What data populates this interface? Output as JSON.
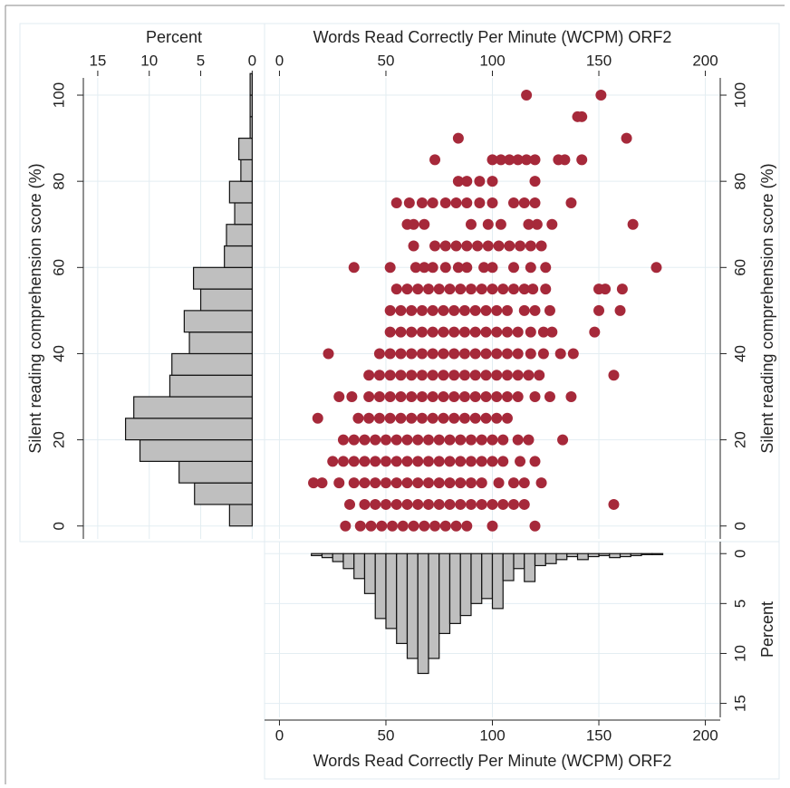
{
  "chart_data": [
    {
      "type": "histogram",
      "orientation": "horizontal",
      "xlabel": "Percent",
      "ylabel": "Silent reading comprehension score (%)",
      "bins": [
        0,
        5,
        10,
        15,
        20,
        25,
        30,
        35,
        40,
        45,
        50,
        55,
        60,
        65,
        70,
        75,
        80,
        85,
        90,
        95,
        100,
        105
      ],
      "values": [
        2.2,
        5.6,
        7.1,
        10.9,
        12.3,
        11.5,
        8.0,
        7.8,
        6.1,
        6.6,
        5.0,
        5.7,
        2.7,
        2.5,
        1.7,
        2.2,
        1.1,
        1.3,
        0.2,
        0.2,
        0.2
      ],
      "color": "#bfbfbf",
      "xlim": [
        16.4,
        -1.2
      ],
      "xticks": [
        15,
        10,
        5,
        0
      ],
      "ylim": [
        -3,
        104
      ],
      "yticks": [
        0,
        20,
        40,
        60,
        80,
        100
      ],
      "grid": true
    },
    {
      "type": "scatter",
      "xlabel": "Words Read Correctly Per Minute (WCPM) ORF2",
      "ylabel": "Silent reading comprehension score (%)",
      "x": [
        116,
        151,
        140,
        142,
        84,
        163,
        73,
        100,
        104,
        108,
        112,
        116,
        120,
        131,
        134,
        142,
        84,
        88,
        94,
        100,
        120,
        55,
        61,
        67,
        72,
        78,
        83,
        88,
        94,
        100,
        110,
        115,
        120,
        137,
        60,
        63,
        68,
        90,
        98,
        104,
        117,
        121,
        128,
        166,
        63,
        73,
        78,
        83,
        88,
        93,
        98,
        103,
        108,
        113,
        118,
        123,
        35,
        52,
        64,
        68,
        72,
        78,
        84,
        88,
        96,
        100,
        110,
        118,
        125,
        177,
        55,
        60,
        65,
        70,
        75,
        80,
        85,
        90,
        95,
        100,
        105,
        110,
        115,
        119,
        125,
        150,
        153,
        161,
        52,
        57,
        62,
        67,
        72,
        77,
        82,
        87,
        92,
        97,
        102,
        107,
        115,
        120,
        127,
        150,
        160,
        52,
        57,
        62,
        67,
        72,
        77,
        82,
        87,
        92,
        97,
        102,
        107,
        112,
        118,
        124,
        128,
        148,
        23,
        47,
        52,
        57,
        62,
        67,
        72,
        77,
        82,
        87,
        92,
        97,
        102,
        107,
        112,
        118,
        124,
        132,
        138,
        42,
        47,
        52,
        57,
        62,
        67,
        72,
        77,
        82,
        87,
        92,
        97,
        102,
        107,
        112,
        117,
        122,
        157,
        28,
        34,
        42,
        47,
        52,
        57,
        62,
        67,
        72,
        77,
        82,
        87,
        92,
        97,
        102,
        107,
        112,
        120,
        127,
        137,
        18,
        37,
        42,
        47,
        52,
        57,
        62,
        67,
        72,
        77,
        82,
        87,
        92,
        97,
        102,
        107,
        30,
        35,
        40,
        45,
        50,
        55,
        60,
        65,
        70,
        75,
        80,
        85,
        90,
        95,
        100,
        105,
        112,
        117,
        133,
        25,
        30,
        35,
        40,
        45,
        50,
        55,
        60,
        65,
        70,
        75,
        80,
        85,
        90,
        95,
        100,
        105,
        113,
        120,
        16,
        20,
        28,
        35,
        40,
        45,
        50,
        55,
        60,
        65,
        70,
        75,
        80,
        85,
        90,
        95,
        103,
        110,
        115,
        123,
        33,
        40,
        45,
        50,
        55,
        60,
        65,
        70,
        75,
        80,
        85,
        90,
        95,
        100,
        105,
        110,
        115,
        157,
        31,
        38,
        43,
        48,
        53,
        58,
        63,
        68,
        73,
        78,
        83,
        88,
        100,
        120
      ],
      "values": [
        100,
        100,
        95,
        95,
        90,
        90,
        85,
        85,
        85,
        85,
        85,
        85,
        85,
        85,
        85,
        85,
        80,
        80,
        80,
        80,
        80,
        75,
        75,
        75,
        75,
        75,
        75,
        75,
        75,
        75,
        75,
        75,
        75,
        75,
        70,
        70,
        70,
        70,
        70,
        70,
        70,
        70,
        70,
        70,
        65,
        65,
        65,
        65,
        65,
        65,
        65,
        65,
        65,
        65,
        65,
        65,
        60,
        60,
        60,
        60,
        60,
        60,
        60,
        60,
        60,
        60,
        60,
        60,
        60,
        60,
        55,
        55,
        55,
        55,
        55,
        55,
        55,
        55,
        55,
        55,
        55,
        55,
        55,
        55,
        55,
        55,
        55,
        55,
        50,
        50,
        50,
        50,
        50,
        50,
        50,
        50,
        50,
        50,
        50,
        50,
        50,
        50,
        50,
        50,
        50,
        45,
        45,
        45,
        45,
        45,
        45,
        45,
        45,
        45,
        45,
        45,
        45,
        45,
        45,
        45,
        45,
        45,
        40,
        40,
        40,
        40,
        40,
        40,
        40,
        40,
        40,
        40,
        40,
        40,
        40,
        40,
        40,
        40,
        40,
        40,
        40,
        35,
        35,
        35,
        35,
        35,
        35,
        35,
        35,
        35,
        35,
        35,
        35,
        35,
        35,
        35,
        35,
        35,
        35,
        30,
        30,
        30,
        30,
        30,
        30,
        30,
        30,
        30,
        30,
        30,
        30,
        30,
        30,
        30,
        30,
        30,
        30,
        30,
        30,
        25,
        25,
        25,
        25,
        25,
        25,
        25,
        25,
        25,
        25,
        25,
        25,
        25,
        25,
        25,
        25,
        20,
        20,
        20,
        20,
        20,
        20,
        20,
        20,
        20,
        20,
        20,
        20,
        20,
        20,
        20,
        20,
        20,
        20,
        20,
        15,
        15,
        15,
        15,
        15,
        15,
        15,
        15,
        15,
        15,
        15,
        15,
        15,
        15,
        15,
        15,
        15,
        15,
        15,
        10,
        10,
        10,
        10,
        10,
        10,
        10,
        10,
        10,
        10,
        10,
        10,
        10,
        10,
        10,
        10,
        10,
        10,
        10,
        10,
        5,
        5,
        5,
        5,
        5,
        5,
        5,
        5,
        5,
        5,
        5,
        5,
        5,
        5,
        5,
        5,
        5,
        5,
        0,
        0,
        0,
        0,
        0,
        0,
        0,
        0,
        0,
        0,
        0,
        0,
        0,
        0
      ],
      "color": "#a6293a",
      "xlim": [
        -7,
        207
      ],
      "xticks": [
        0,
        50,
        100,
        150,
        200
      ],
      "ylim": [
        -3,
        104
      ],
      "yticks": [
        0,
        20,
        40,
        60,
        80,
        100
      ],
      "grid": true
    },
    {
      "type": "histogram",
      "orientation": "vertical",
      "xlabel": "Words Read Correctly Per Minute (WCPM) ORF2",
      "ylabel": "Percent",
      "bins": [
        15,
        20,
        25,
        30,
        35,
        40,
        45,
        50,
        55,
        60,
        65,
        70,
        75,
        80,
        85,
        90,
        95,
        100,
        105,
        110,
        115,
        120,
        125,
        130,
        135,
        140,
        145,
        150,
        155,
        160,
        165,
        170,
        175,
        180
      ],
      "values": [
        0.2,
        0.4,
        0.8,
        1.5,
        2.5,
        4.0,
        6.5,
        7.5,
        9.0,
        10.5,
        12.0,
        10.5,
        8.0,
        7.0,
        6.2,
        5.0,
        4.5,
        5.5,
        2.7,
        1.5,
        2.8,
        1.2,
        1.0,
        0.6,
        0.3,
        0.6,
        0.3,
        0.2,
        0.4,
        0.3,
        0.2,
        0.1,
        0.1
      ],
      "color": "#bfbfbf",
      "xlim": [
        -7,
        207
      ],
      "xticks": [
        0,
        50,
        100,
        150,
        200
      ],
      "ylim": [
        16.4,
        -1.2
      ],
      "yticks": [
        0,
        5,
        10,
        15
      ],
      "grid": true
    }
  ]
}
